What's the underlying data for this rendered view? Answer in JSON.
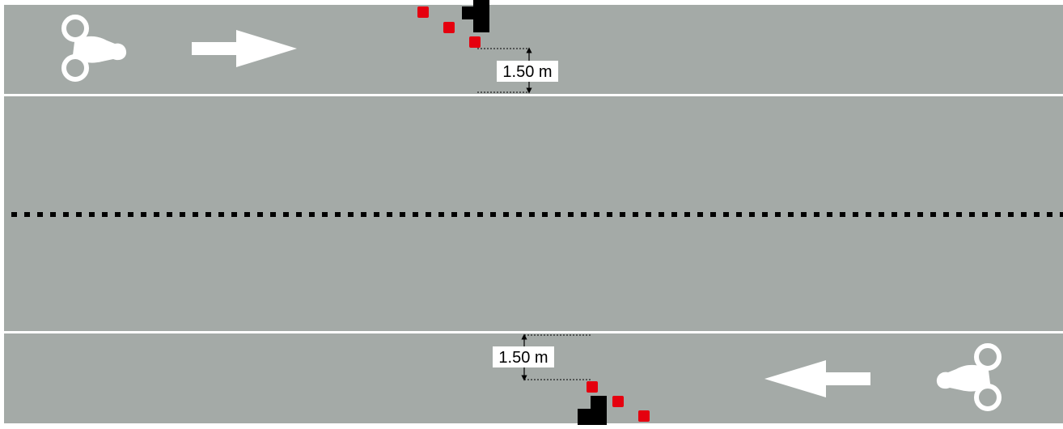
{
  "diagram": {
    "colors": {
      "road": "#a4aaa7",
      "marking": "#ffffff",
      "center_line": "#000000",
      "sensor": "#e5000f",
      "device": "#000000"
    },
    "icons": {
      "cyclist": "cyclist-icon",
      "arrow_right": "arrow-right-icon",
      "arrow_left": "arrow-left-icon",
      "sensor": "red-square-marker",
      "device": "black-device-icon"
    },
    "top_lane": {
      "direction": "right",
      "clearance_label": "1.50 m"
    },
    "bottom_lane": {
      "direction": "left",
      "clearance_label": "1.50 m"
    }
  }
}
